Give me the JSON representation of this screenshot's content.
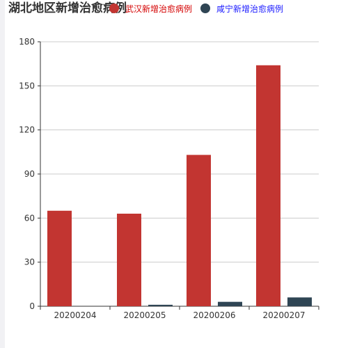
{
  "chart_data": {
    "type": "bar",
    "title": "湖北地区新增治愈病例",
    "categories": [
      "20200204",
      "20200205",
      "20200206",
      "20200207"
    ],
    "series": [
      {
        "name": "武汉新增治愈病例",
        "color": "#c23531",
        "legend_text_color": "#d40000",
        "values": [
          65,
          63,
          103,
          164
        ]
      },
      {
        "name": "咸宁新增治愈病例",
        "color": "#2f4554",
        "legend_text_color": "#1a1aff",
        "values": [
          0,
          1,
          3,
          6
        ]
      }
    ],
    "y_ticks": [
      "0",
      "30",
      "60",
      "90",
      "120",
      "150",
      "180"
    ],
    "ylim": [
      0,
      180
    ],
    "xlabel": "",
    "ylabel": "",
    "grid": true,
    "legend_position": "top"
  }
}
